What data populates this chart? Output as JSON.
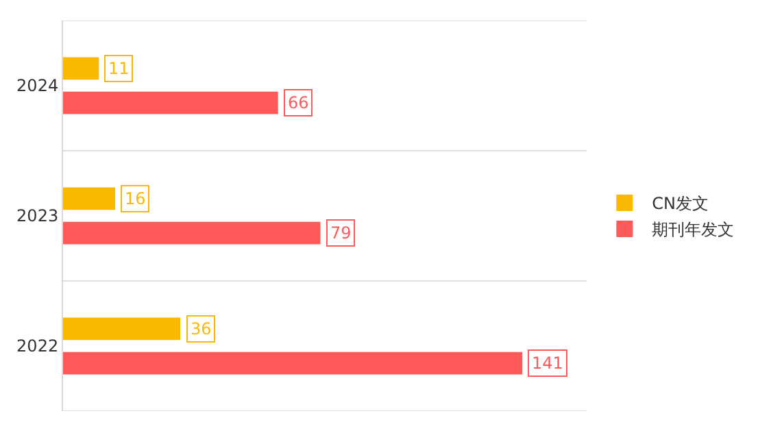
{
  "chart_data": {
    "type": "bar",
    "orientation": "horizontal",
    "categories": [
      "2024",
      "2023",
      "2022"
    ],
    "series": [
      {
        "name": "CN发文",
        "color": "#fbb800",
        "values": [
          11,
          16,
          36
        ]
      },
      {
        "name": "期刊年发文",
        "color": "#ff5a5a",
        "values": [
          66,
          79,
          141
        ]
      }
    ],
    "tick_labels": "y",
    "data_labels": true,
    "grid": "y",
    "legend": "right"
  }
}
